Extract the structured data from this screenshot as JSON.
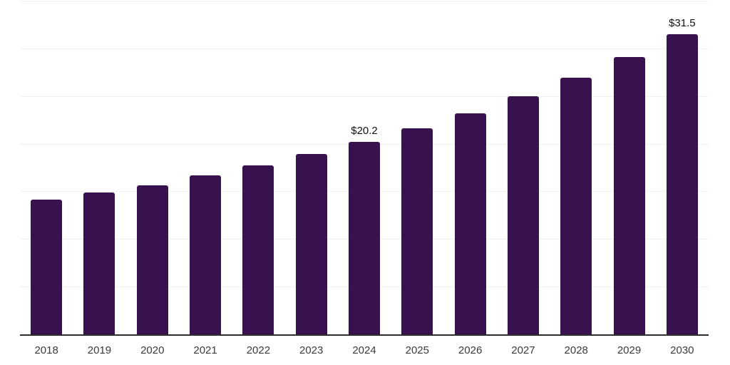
{
  "chart_data": {
    "type": "bar",
    "title": "",
    "xlabel": "",
    "ylabel": "",
    "categories": [
      "2018",
      "2019",
      "2020",
      "2021",
      "2022",
      "2023",
      "2024",
      "2025",
      "2026",
      "2027",
      "2028",
      "2029",
      "2030"
    ],
    "values": [
      14.1,
      14.9,
      15.6,
      16.7,
      17.7,
      18.9,
      20.2,
      21.6,
      23.2,
      25.0,
      26.9,
      29.1,
      31.5
    ],
    "point_labels": [
      "",
      "",
      "",
      "",
      "",
      "",
      "$20.2",
      "",
      "",
      "",
      "",
      "",
      "$31.5"
    ],
    "ylim": [
      0,
      35
    ],
    "gridline_step": 5,
    "grid": true,
    "legend_position": "none",
    "colors": {
      "bar": "#38124F",
      "axis_line": "#2d2d2d",
      "gridline": "#f2f2f2",
      "tick_label": "#3a3a3a",
      "value_label": "#111111",
      "background": "#ffffff"
    }
  }
}
